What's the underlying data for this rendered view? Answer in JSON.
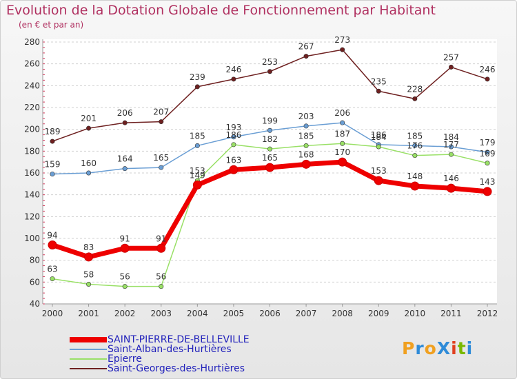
{
  "header": {
    "title": "Evolution de la Dotation Globale de Fonctionnement par Habitant",
    "subtitle": "(en € et par an)"
  },
  "logo": {
    "text": "ProXiti",
    "letters": [
      "P",
      "r",
      "o",
      "X",
      "i",
      "t",
      "i"
    ],
    "colors": [
      "#f0a020",
      "#2e8bd8",
      "#f0a020",
      "#2e8bd8",
      "#e04020",
      "#79b800",
      "#2e8bd8"
    ]
  },
  "chart_data": {
    "type": "line",
    "title": "Evolution de la Dotation Globale de Fonctionnement par Habitant",
    "subtitle": "(en € et par an)",
    "xlabel": "",
    "ylabel": "",
    "x": [
      "2000",
      "2001",
      "2002",
      "2003",
      "2004",
      "2005",
      "2006",
      "2007",
      "2008",
      "2009",
      "2010",
      "2011",
      "2012"
    ],
    "ylim": [
      40,
      280
    ],
    "yticks": [
      40,
      60,
      80,
      100,
      120,
      140,
      160,
      180,
      200,
      220,
      240,
      260,
      280
    ],
    "grid": "horizontal dashed",
    "legend_position": "bottom-left",
    "series": [
      {
        "name": "SAINT-PIERRE-DE-BELLEVILLE",
        "color": "#ee0000",
        "width": 7,
        "values": [
          94,
          83,
          91,
          91,
          149,
          163,
          165,
          168,
          170,
          153,
          148,
          146,
          143
        ]
      },
      {
        "name": "Saint-Alban-des-Hurtières",
        "color": "#6a9ed4",
        "width": 1.5,
        "values": [
          159,
          160,
          164,
          165,
          185,
          193,
          199,
          203,
          206,
          186,
          185,
          184,
          179
        ]
      },
      {
        "name": "Epierre",
        "color": "#99e066",
        "width": 1.5,
        "values": [
          63,
          58,
          56,
          56,
          153,
          186,
          182,
          185,
          187,
          184,
          176,
          177,
          169
        ]
      },
      {
        "name": "Saint-Georges-des-Hurtières",
        "color": "#6e2020",
        "width": 1.5,
        "values": [
          189,
          201,
          206,
          207,
          239,
          246,
          253,
          267,
          273,
          235,
          228,
          257,
          246
        ]
      }
    ]
  }
}
